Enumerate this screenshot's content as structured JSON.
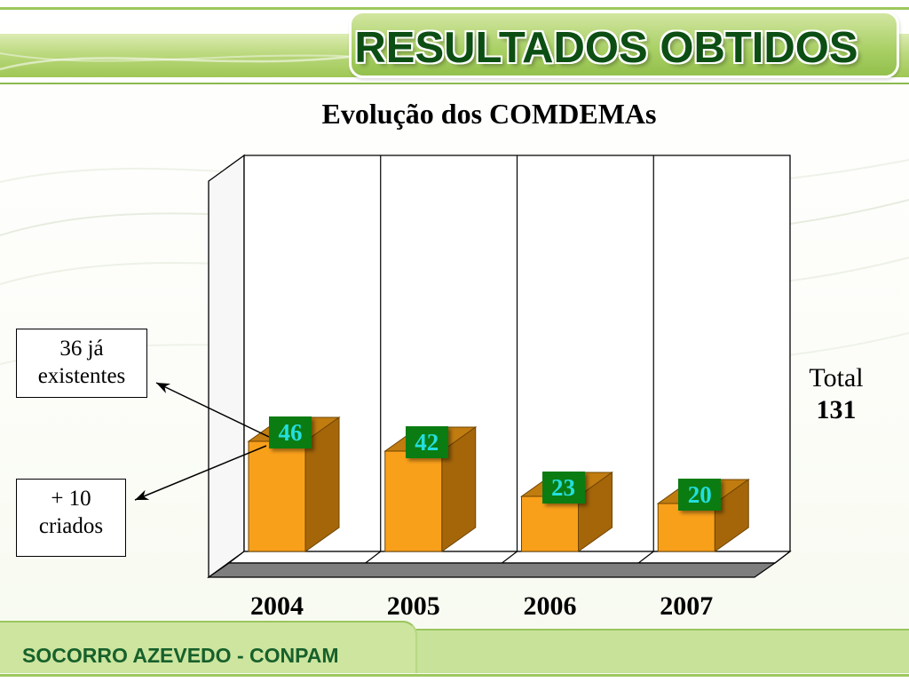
{
  "header": {
    "title": "RESULTADOS OBTIDOS"
  },
  "slide": {
    "chart_title": "Evolução dos COMDEMAs",
    "callouts": [
      {
        "text": "36 já existentes"
      },
      {
        "text": "+ 10 criados"
      }
    ],
    "total": {
      "label": "Total",
      "value": "131"
    }
  },
  "chart_data": {
    "type": "bar",
    "title": "Evolução dos COMDEMAs",
    "categories": [
      "2004",
      "2005",
      "2006",
      "2007"
    ],
    "values": [
      46,
      42,
      23,
      20
    ],
    "xlabel": "",
    "ylabel": "",
    "ylim": [
      0,
      165
    ],
    "legend": "none",
    "grid": "vertical category separator lines on back wall",
    "style": "3d-bar",
    "bar_color": "#F9A01B",
    "bar_side_color": "#A5660A",
    "bar_top_color": "#C17C10",
    "value_label_bg": "#0A7C12",
    "value_label_color": "#24DEDE",
    "annotations": [
      "36 já existentes",
      "+ 10 criados",
      "Total 131"
    ]
  },
  "footer": {
    "text": "SOCORRO AZEVEDO - CONPAM"
  },
  "colors": {
    "header_text": "#0C4E13",
    "header_band": "#A2CB5B",
    "footer_band": "#C8E29A",
    "footer_text": "#17602B"
  }
}
